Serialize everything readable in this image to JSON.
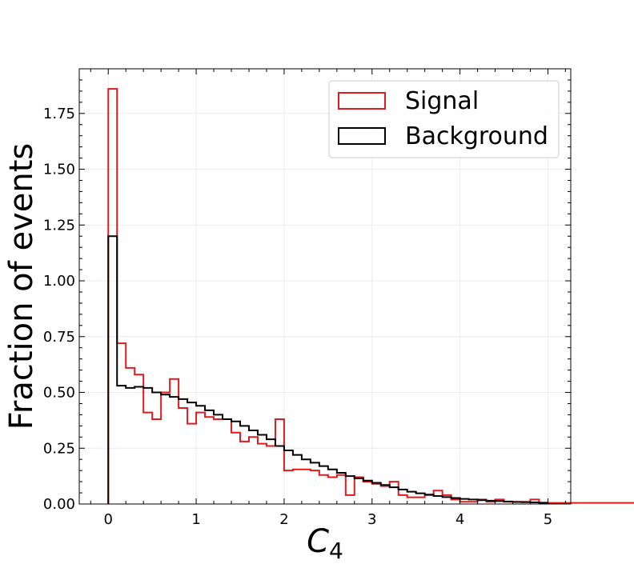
{
  "chart_data": {
    "type": "histogram",
    "xlabel_base": "C",
    "xlabel_sub": "4",
    "ylabel": "Fraction of events",
    "xlim": [
      -0.33,
      5.26
    ],
    "ylim": [
      0,
      1.95
    ],
    "x_ticks": [
      0,
      1,
      2,
      3,
      4,
      5
    ],
    "x_tick_labels": [
      "0",
      "1",
      "2",
      "3",
      "4",
      "5"
    ],
    "x_minor_step": 0.2,
    "y_ticks": [
      0,
      0.25,
      0.5,
      0.75,
      1.0,
      1.25,
      1.5,
      1.75
    ],
    "y_tick_labels": [
      "0.00",
      "0.25",
      "0.50",
      "0.75",
      "1.00",
      "1.25",
      "1.50",
      "1.75"
    ],
    "y_minor_step": 0.05,
    "grid": true,
    "legend_position": "top-right",
    "bin_edges_start": 0,
    "bin_width": 0.1,
    "series": [
      {
        "name": "Signal",
        "color": "#e31a1c",
        "values": [
          1.86,
          0.72,
          0.61,
          0.58,
          0.41,
          0.38,
          0.5,
          0.56,
          0.43,
          0.36,
          0.41,
          0.39,
          0.38,
          0.38,
          0.32,
          0.28,
          0.3,
          0.27,
          0.26,
          0.38,
          0.15,
          0.155,
          0.155,
          0.15,
          0.13,
          0.12,
          0.13,
          0.04,
          0.12,
          0.1,
          0.09,
          0.08,
          0.1,
          0.04,
          0.03,
          0.03,
          0.04,
          0.06,
          0.04,
          0.02,
          0.01,
          0.01,
          0.02,
          0.01,
          0.02,
          0.01,
          0.01,
          0.01,
          0.02,
          0.005,
          0.005,
          0.005,
          0.005,
          0.005,
          0.005,
          0.005,
          0.005,
          0.005,
          0.005,
          0.005,
          0.005,
          0.005,
          0.005,
          0.005,
          0.005,
          0.005,
          0.005,
          0.005,
          0.005,
          0.005,
          0.005,
          0.005,
          0.005,
          0.005,
          0.005,
          0.005,
          0.005,
          0.005,
          0.005,
          0.005,
          0.005,
          0.005,
          0.005,
          0.005,
          0.005,
          0.005,
          0.005,
          0.005,
          0.005,
          0.005
        ]
      },
      {
        "name": "Background",
        "color": "#000000",
        "values": [
          1.2,
          0.53,
          0.52,
          0.525,
          0.52,
          0.5,
          0.49,
          0.48,
          0.47,
          0.455,
          0.44,
          0.42,
          0.4,
          0.38,
          0.37,
          0.35,
          0.33,
          0.31,
          0.29,
          0.26,
          0.24,
          0.22,
          0.2,
          0.185,
          0.17,
          0.155,
          0.14,
          0.125,
          0.115,
          0.105,
          0.095,
          0.085,
          0.075,
          0.065,
          0.055,
          0.048,
          0.042,
          0.036,
          0.031,
          0.027,
          0.023,
          0.02,
          0.017,
          0.015,
          0.013,
          0.011,
          0.009,
          0.008,
          0.007,
          0.006
        ]
      }
    ]
  }
}
